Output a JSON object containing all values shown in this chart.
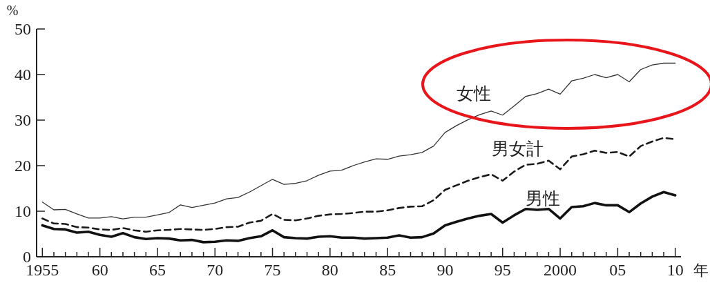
{
  "chart_data": {
    "type": "line",
    "xlabel": "年",
    "ylabel": "%",
    "x": [
      1955,
      1956,
      1957,
      1958,
      1959,
      1960,
      1961,
      1962,
      1963,
      1964,
      1965,
      1966,
      1967,
      1968,
      1969,
      1970,
      1971,
      1972,
      1973,
      1974,
      1975,
      1976,
      1977,
      1978,
      1979,
      1980,
      1981,
      1982,
      1983,
      1984,
      1985,
      1986,
      1987,
      1988,
      1989,
      1990,
      1991,
      1992,
      1993,
      1994,
      1995,
      1996,
      1997,
      1998,
      1999,
      2000,
      2001,
      2002,
      2003,
      2004,
      2005,
      2006,
      2007,
      2008,
      2009,
      2010
    ],
    "series": [
      {
        "name": "女性",
        "color": "#333333",
        "line_style": "solid",
        "values": [
          12.0,
          10.3,
          10.4,
          9.4,
          8.5,
          8.5,
          8.8,
          8.3,
          8.7,
          8.7,
          9.2,
          9.7,
          11.4,
          10.8,
          11.3,
          11.8,
          12.7,
          13.0,
          14.2,
          15.6,
          17.0,
          15.9,
          16.1,
          16.7,
          17.9,
          18.8,
          19.0,
          20.0,
          20.8,
          21.5,
          21.4,
          22.1,
          22.4,
          22.9,
          24.3,
          27.3,
          28.8,
          30.1,
          31.2,
          32.0,
          31.1,
          33.1,
          35.2,
          35.8,
          36.8,
          35.7,
          38.6,
          39.2,
          40.0,
          39.3,
          40.0,
          38.4,
          41.1,
          42.1,
          42.5,
          42.5
        ]
      },
      {
        "name": "男女計",
        "color": "#1a1a1a",
        "line_style": "dashed",
        "values": [
          8.4,
          7.3,
          7.2,
          6.5,
          6.4,
          6.0,
          5.9,
          6.3,
          5.8,
          5.5,
          5.8,
          5.9,
          6.1,
          6.0,
          5.9,
          6.1,
          6.5,
          6.6,
          7.5,
          7.9,
          9.4,
          8.1,
          8.0,
          8.4,
          9.0,
          9.3,
          9.4,
          9.6,
          9.9,
          9.9,
          10.2,
          10.7,
          11.0,
          11.1,
          12.4,
          14.7,
          15.7,
          16.7,
          17.5,
          18.1,
          16.7,
          18.7,
          20.2,
          20.4,
          21.1,
          19.2,
          22.0,
          22.5,
          23.3,
          22.8,
          23.0,
          22.0,
          24.3,
          25.3,
          26.1,
          25.8
        ]
      },
      {
        "name": "男性",
        "color": "#111111",
        "line_style": "solid",
        "values": [
          6.9,
          6.1,
          6.0,
          5.3,
          5.5,
          4.8,
          4.4,
          5.2,
          4.3,
          3.9,
          4.1,
          4.0,
          3.6,
          3.7,
          3.2,
          3.3,
          3.6,
          3.5,
          4.1,
          4.5,
          5.8,
          4.3,
          4.1,
          4.0,
          4.4,
          4.5,
          4.2,
          4.2,
          4.0,
          4.1,
          4.2,
          4.7,
          4.2,
          4.3,
          5.1,
          6.9,
          7.7,
          8.4,
          9.0,
          9.4,
          7.5,
          9.1,
          10.5,
          10.3,
          10.5,
          8.4,
          10.9,
          11.1,
          11.8,
          11.3,
          11.3,
          9.8,
          11.7,
          13.2,
          14.2,
          13.5
        ]
      }
    ],
    "xlim": [
      1954.5,
      2010.5
    ],
    "xticks": [
      {
        "value": 1955,
        "label": "1955"
      },
      {
        "value": 1956,
        "label": null
      },
      {
        "value": 1957,
        "label": null
      },
      {
        "value": 1958,
        "label": null
      },
      {
        "value": 1959,
        "label": null
      },
      {
        "value": 1960,
        "label": "60"
      },
      {
        "value": 1961,
        "label": null
      },
      {
        "value": 1962,
        "label": null
      },
      {
        "value": 1963,
        "label": null
      },
      {
        "value": 1964,
        "label": null
      },
      {
        "value": 1965,
        "label": "65"
      },
      {
        "value": 1966,
        "label": null
      },
      {
        "value": 1967,
        "label": null
      },
      {
        "value": 1968,
        "label": null
      },
      {
        "value": 1969,
        "label": null
      },
      {
        "value": 1970,
        "label": "70"
      },
      {
        "value": 1971,
        "label": null
      },
      {
        "value": 1972,
        "label": null
      },
      {
        "value": 1973,
        "label": null
      },
      {
        "value": 1974,
        "label": null
      },
      {
        "value": 1975,
        "label": "75"
      },
      {
        "value": 1976,
        "label": null
      },
      {
        "value": 1977,
        "label": null
      },
      {
        "value": 1978,
        "label": null
      },
      {
        "value": 1979,
        "label": null
      },
      {
        "value": 1980,
        "label": "80"
      },
      {
        "value": 1981,
        "label": null
      },
      {
        "value": 1982,
        "label": null
      },
      {
        "value": 1983,
        "label": null
      },
      {
        "value": 1984,
        "label": null
      },
      {
        "value": 1985,
        "label": "85"
      },
      {
        "value": 1986,
        "label": null
      },
      {
        "value": 1987,
        "label": null
      },
      {
        "value": 1988,
        "label": null
      },
      {
        "value": 1989,
        "label": null
      },
      {
        "value": 1990,
        "label": "90"
      },
      {
        "value": 1991,
        "label": null
      },
      {
        "value": 1992,
        "label": null
      },
      {
        "value": 1993,
        "label": null
      },
      {
        "value": 1994,
        "label": null
      },
      {
        "value": 1995,
        "label": "95"
      },
      {
        "value": 1996,
        "label": null
      },
      {
        "value": 1997,
        "label": null
      },
      {
        "value": 1998,
        "label": null
      },
      {
        "value": 1999,
        "label": null
      },
      {
        "value": 2000,
        "label": "2000"
      },
      {
        "value": 2001,
        "label": null
      },
      {
        "value": 2002,
        "label": null
      },
      {
        "value": 2003,
        "label": null
      },
      {
        "value": 2004,
        "label": null
      },
      {
        "value": 2005,
        "label": "05"
      },
      {
        "value": 2006,
        "label": null
      },
      {
        "value": 2007,
        "label": null
      },
      {
        "value": 2008,
        "label": null
      },
      {
        "value": 2009,
        "label": null
      },
      {
        "value": 2010,
        "label": "10"
      }
    ],
    "ylim": [
      0,
      50
    ],
    "yticks": [
      0,
      10,
      20,
      30,
      40,
      50
    ],
    "grid": false,
    "legend": false,
    "marker": "none"
  }
}
